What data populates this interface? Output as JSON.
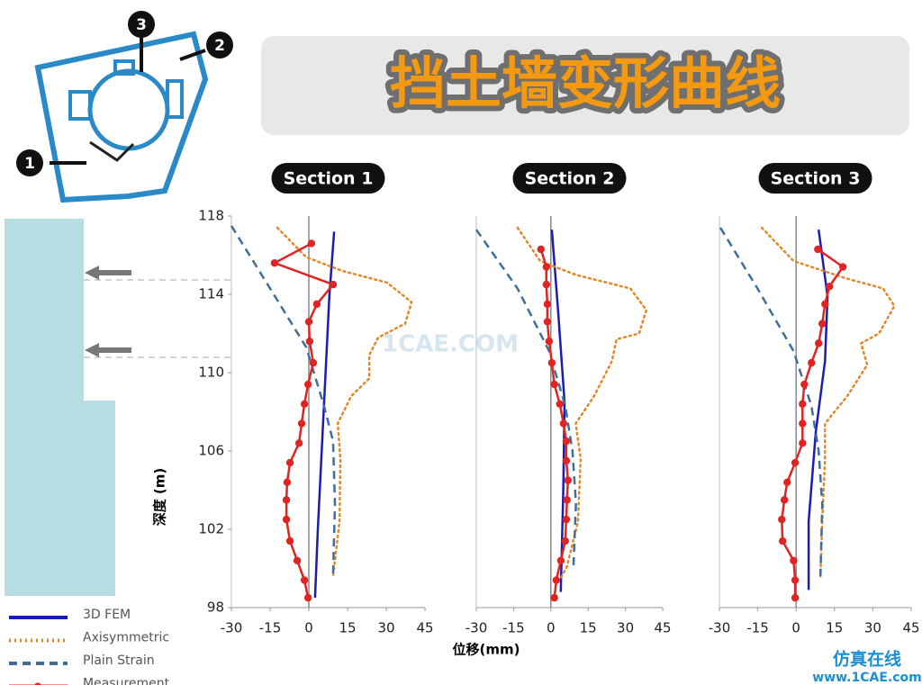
{
  "title": "挡土墙变形曲线",
  "site_plan": {
    "labels": [
      "1",
      "2",
      "3"
    ]
  },
  "watermarks": [
    "1CAE.COM",
    "仿真在线",
    "www.1CAE.com"
  ],
  "chart_data": [
    {
      "type": "line",
      "title": "Section 1",
      "ylabel": "深度 (m)",
      "xlim": [
        -30,
        45
      ],
      "xticks": [
        -30,
        -15,
        0,
        15,
        30,
        45
      ],
      "ylim": [
        98,
        118
      ],
      "yticks": [
        98,
        102,
        106,
        110,
        114,
        118
      ],
      "series": [
        {
          "name": "3D FEM",
          "color": "#1c1cb4",
          "style": "solid",
          "x": [
            9.8,
            8.0,
            6.5,
            5.0,
            3.5,
            2.4
          ],
          "y": [
            117.2,
            114,
            110,
            106,
            102,
            98.5
          ]
        },
        {
          "name": "Axisymmetric",
          "color": "#e0892c",
          "style": "dotted",
          "x": [
            -12.2,
            -1,
            12.9,
            30.3,
            39.8,
            37.3,
            26.9,
            23.4,
            23.4,
            16.4,
            11.2,
            12.2,
            11.9,
            9.4
          ],
          "y": [
            117.4,
            115.9,
            115.2,
            114.6,
            113.6,
            112.5,
            111.8,
            110.9,
            109.7,
            108.8,
            107.4,
            105.6,
            102.4,
            99.6
          ]
        },
        {
          "name": "Plain Strain",
          "color": "#3f6e9a",
          "style": "dashed",
          "x": [
            -30,
            -15,
            -1,
            5.9,
            9.4,
            10.1,
            9.4
          ],
          "y": [
            117.5,
            114.3,
            111.3,
            108.3,
            106.5,
            103.3,
            99.6
          ]
        },
        {
          "name": "Measurement",
          "color": "#e02424",
          "style": "solid",
          "marker": true,
          "x": [
            1,
            -13.3,
            9.4,
            3.1,
            0,
            0.3,
            1.7,
            -0.3,
            -1.7,
            -2.8,
            -3.8,
            -7.3,
            -8.4,
            -8.7,
            -8.7,
            -7.3,
            -4.5,
            -1.7,
            -0.3
          ],
          "y": [
            116.6,
            115.6,
            114.5,
            113.5,
            112.6,
            111.6,
            110.5,
            109.4,
            108.4,
            107.4,
            106.4,
            105.4,
            104.4,
            103.5,
            102.5,
            101.4,
            100.4,
            99.4,
            98.5
          ]
        }
      ]
    },
    {
      "type": "line",
      "title": "Section 2",
      "xlabel": "位移(mm)",
      "xlim": [
        -30,
        45
      ],
      "xticks": [
        -30,
        -15,
        0,
        15,
        30,
        45
      ],
      "ylim": [
        98,
        118
      ],
      "series": [
        {
          "color": "#1c1cb4",
          "style": "solid",
          "x": [
            0.4,
            3,
            5.5,
            5,
            4
          ],
          "y": [
            117.3,
            113,
            108.5,
            104,
            98.8
          ]
        },
        {
          "color": "#e0892c",
          "style": "dotted",
          "x": [
            -13.4,
            -4.3,
            10,
            32,
            38.4,
            35.5,
            26.4,
            24.6,
            17.4,
            10,
            12,
            10.9,
            6.5,
            3.6
          ],
          "y": [
            117.4,
            115.7,
            115,
            114.3,
            113.2,
            112,
            111.7,
            110.6,
            108.8,
            107.4,
            105.6,
            102.4,
            100.1,
            99.4
          ]
        },
        {
          "color": "#3f6e9a",
          "style": "dashed",
          "x": [
            -30,
            -13.4,
            -0.7,
            5.8,
            8.7,
            10.1,
            9.1
          ],
          "y": [
            117.3,
            114.3,
            111.1,
            108.3,
            106,
            103.3,
            100.1
          ]
        },
        {
          "color": "#e02424",
          "style": "solid",
          "marker": true,
          "x": [
            -4,
            -1.8,
            -1.8,
            -1.4,
            -1.4,
            -0.7,
            0.4,
            1.4,
            3.6,
            5.1,
            6.2,
            6.2,
            6.9,
            6.5,
            6.2,
            5.8,
            4,
            2.2,
            1.4
          ],
          "y": [
            116.3,
            115.4,
            114.5,
            113.5,
            112.6,
            111.6,
            110.5,
            109.4,
            108.4,
            107.4,
            106.5,
            105.5,
            104.5,
            103.5,
            102.5,
            101.4,
            100.4,
            99.4,
            98.5
          ]
        }
      ]
    },
    {
      "type": "line",
      "title": "Section 3",
      "xlim": [
        -30,
        45
      ],
      "xticks": [
        -30,
        -15,
        0,
        15,
        30,
        45
      ],
      "ylim": [
        98,
        118
      ],
      "series": [
        {
          "color": "#1c1cb4",
          "style": "solid",
          "x": [
            8.8,
            12.3,
            11.3,
            7.7,
            4.9,
            4.9
          ],
          "y": [
            117.3,
            113.9,
            110.6,
            107,
            102.4,
            98.9
          ]
        },
        {
          "color": "#e0892c",
          "style": "dotted",
          "x": [
            -13.4,
            -1,
            20,
            34,
            38.4,
            32.4,
            25.4,
            27.8,
            20,
            11.3,
            11.3,
            10.2,
            9.5
          ],
          "y": [
            117.4,
            115.7,
            114.8,
            114.3,
            113.4,
            112,
            111.5,
            110.4,
            108.8,
            107.4,
            105.6,
            102.4,
            99.6
          ]
        },
        {
          "color": "#3f6e9a",
          "style": "dashed",
          "x": [
            -29.6,
            -15.1,
            -1,
            6,
            8.8,
            10.2,
            9.5
          ],
          "y": [
            117.4,
            114.3,
            111.1,
            108.3,
            106,
            103.3,
            99.6
          ]
        },
        {
          "color": "#e02424",
          "style": "solid",
          "marker": true,
          "x": [
            8.5,
            18.3,
            13,
            11.3,
            10.2,
            8.8,
            6,
            3.2,
            2.5,
            2.5,
            2.5,
            -0.4,
            -3.5,
            -4.6,
            -5.6,
            -5.3,
            -1,
            -0.4,
            -0.4
          ],
          "y": [
            116.3,
            115.4,
            114.4,
            113.5,
            112.5,
            111.5,
            110.5,
            109.4,
            108.4,
            107.4,
            106.4,
            105.4,
            104.4,
            103.5,
            102.5,
            101.4,
            100.4,
            99.4,
            98.5
          ]
        }
      ]
    }
  ]
}
